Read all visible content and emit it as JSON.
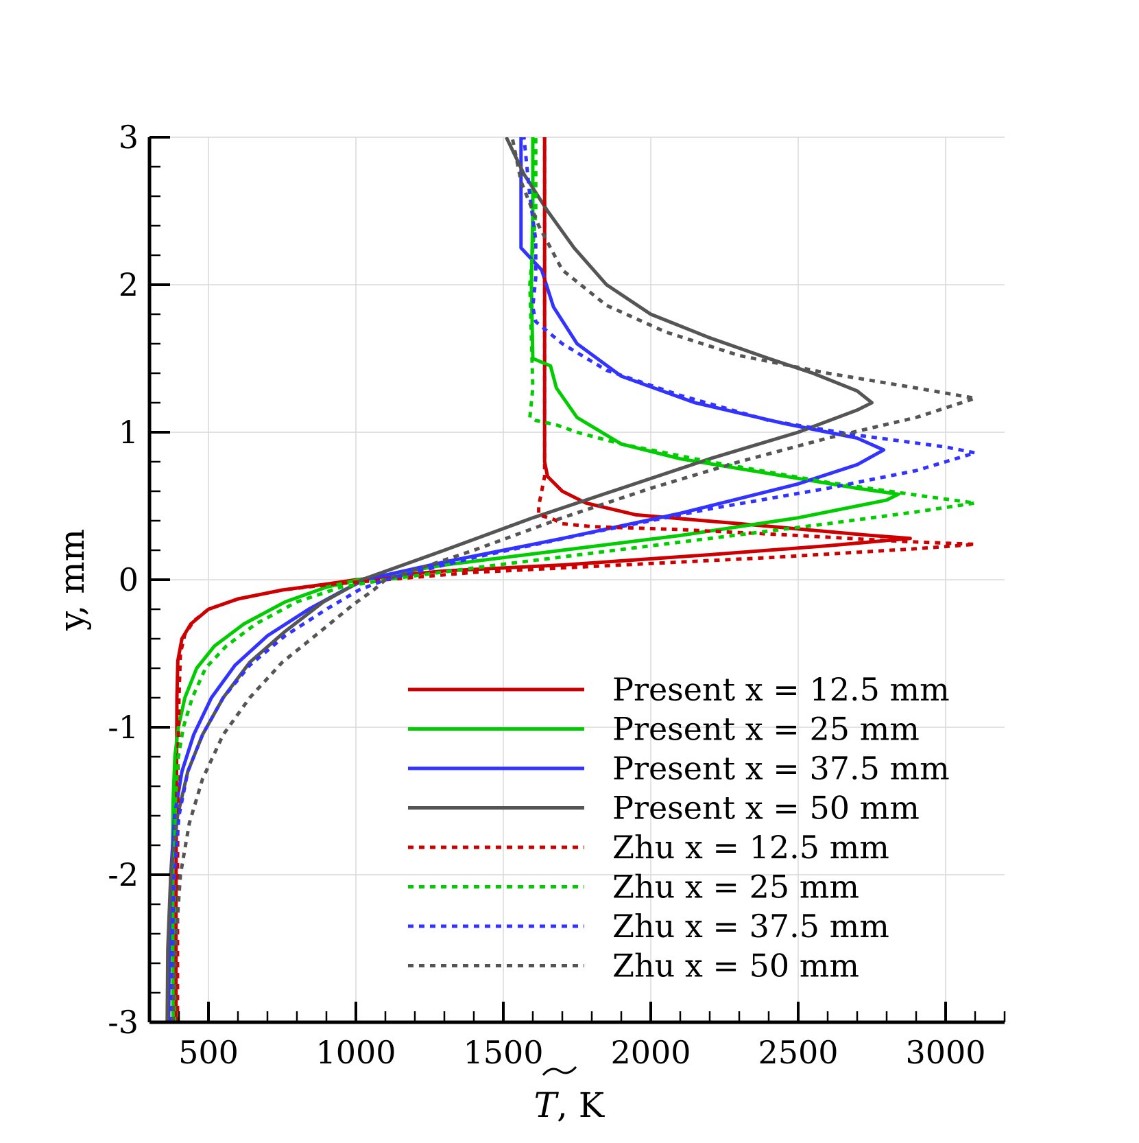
{
  "chart_data": {
    "type": "line",
    "title": "",
    "xlabel": "T, K",
    "xlabel_symbol": "T",
    "xlabel_unit": ", K",
    "ylabel": "y, mm",
    "xlim": [
      300,
      3200
    ],
    "ylim": [
      -3,
      3
    ],
    "grid": true,
    "legend_position": "bottom-right",
    "x_ticks": [
      500,
      1000,
      1500,
      2000,
      2500,
      3000
    ],
    "x_tick_labels": [
      "500",
      "1000",
      "1500",
      "2000",
      "2500",
      "3000"
    ],
    "y_ticks": [
      -3,
      -2,
      -1,
      0,
      1,
      2,
      3
    ],
    "y_tick_labels": [
      "-3",
      "-2",
      "-1",
      "0",
      "1",
      "2",
      "3"
    ],
    "colors": {
      "red": "#cc0000",
      "green": "#00cc00",
      "blue": "#3333ff",
      "gray": "#555555"
    },
    "series": [
      {
        "name": "Present x = 12.5 mm",
        "color": "#cc0000",
        "style": "solid",
        "points": [
          [
            390,
            -3
          ],
          [
            390,
            -2
          ],
          [
            392,
            -1.2
          ],
          [
            393,
            -0.8
          ],
          [
            396,
            -0.55
          ],
          [
            410,
            -0.4
          ],
          [
            440,
            -0.3
          ],
          [
            500,
            -0.2
          ],
          [
            600,
            -0.13
          ],
          [
            750,
            -0.07
          ],
          [
            900,
            -0.03
          ],
          [
            1000,
            0
          ],
          [
            1300,
            0.06
          ],
          [
            1700,
            0.1
          ],
          [
            2200,
            0.17
          ],
          [
            2600,
            0.23
          ],
          [
            2880,
            0.28
          ],
          [
            2750,
            0.3
          ],
          [
            2300,
            0.38
          ],
          [
            1950,
            0.44
          ],
          [
            1780,
            0.52
          ],
          [
            1700,
            0.6
          ],
          [
            1650,
            0.7
          ],
          [
            1640,
            0.8
          ],
          [
            1640,
            1.5
          ],
          [
            1640,
            2.5
          ],
          [
            1640,
            3
          ]
        ]
      },
      {
        "name": "Present x = 25 mm",
        "color": "#00cc00",
        "style": "solid",
        "points": [
          [
            380,
            -3
          ],
          [
            378,
            -2
          ],
          [
            380,
            -1.5
          ],
          [
            386,
            -1.2
          ],
          [
            398,
            -1.0
          ],
          [
            420,
            -0.8
          ],
          [
            460,
            -0.6
          ],
          [
            520,
            -0.45
          ],
          [
            620,
            -0.3
          ],
          [
            760,
            -0.15
          ],
          [
            900,
            -0.05
          ],
          [
            1010,
            0
          ],
          [
            1300,
            0.1
          ],
          [
            1700,
            0.2
          ],
          [
            2100,
            0.3
          ],
          [
            2500,
            0.42
          ],
          [
            2800,
            0.54
          ],
          [
            2840,
            0.58
          ],
          [
            2700,
            0.62
          ],
          [
            2400,
            0.72
          ],
          [
            2100,
            0.82
          ],
          [
            1900,
            0.92
          ],
          [
            1750,
            1.1
          ],
          [
            1680,
            1.3
          ],
          [
            1660,
            1.45
          ],
          [
            1600,
            1.5
          ],
          [
            1595,
            2.0
          ],
          [
            1600,
            2.5
          ],
          [
            1600,
            3
          ]
        ]
      },
      {
        "name": "Present x = 37.5 mm",
        "color": "#3333ff",
        "style": "solid",
        "points": [
          [
            365,
            -3
          ],
          [
            367,
            -2.5
          ],
          [
            372,
            -2
          ],
          [
            385,
            -1.6
          ],
          [
            410,
            -1.3
          ],
          [
            450,
            -1.05
          ],
          [
            510,
            -0.8
          ],
          [
            590,
            -0.58
          ],
          [
            700,
            -0.38
          ],
          [
            840,
            -0.2
          ],
          [
            960,
            -0.07
          ],
          [
            1030,
            0
          ],
          [
            1300,
            0.12
          ],
          [
            1700,
            0.28
          ],
          [
            2100,
            0.45
          ],
          [
            2500,
            0.65
          ],
          [
            2700,
            0.78
          ],
          [
            2790,
            0.88
          ],
          [
            2700,
            0.96
          ],
          [
            2450,
            1.06
          ],
          [
            2150,
            1.2
          ],
          [
            1900,
            1.38
          ],
          [
            1750,
            1.6
          ],
          [
            1670,
            1.85
          ],
          [
            1630,
            2.1
          ],
          [
            1560,
            2.25
          ],
          [
            1560,
            2.6
          ],
          [
            1560,
            3
          ]
        ]
      },
      {
        "name": "Present x = 50 mm",
        "color": "#555555",
        "style": "solid",
        "points": [
          [
            360,
            -3
          ],
          [
            362,
            -2.5
          ],
          [
            372,
            -2
          ],
          [
            395,
            -1.6
          ],
          [
            430,
            -1.3
          ],
          [
            480,
            -1.05
          ],
          [
            550,
            -0.8
          ],
          [
            640,
            -0.56
          ],
          [
            760,
            -0.35
          ],
          [
            890,
            -0.15
          ],
          [
            980,
            -0.05
          ],
          [
            1020,
            0
          ],
          [
            1300,
            0.2
          ],
          [
            1600,
            0.42
          ],
          [
            1900,
            0.62
          ],
          [
            2200,
            0.82
          ],
          [
            2500,
            1.0
          ],
          [
            2700,
            1.15
          ],
          [
            2750,
            1.2
          ],
          [
            2700,
            1.28
          ],
          [
            2550,
            1.4
          ],
          [
            2400,
            1.5
          ],
          [
            2200,
            1.64
          ],
          [
            2000,
            1.8
          ],
          [
            1850,
            2.0
          ],
          [
            1740,
            2.25
          ],
          [
            1650,
            2.5
          ],
          [
            1570,
            2.75
          ],
          [
            1510,
            3
          ]
        ]
      },
      {
        "name": "Zhu x = 12.5 mm",
        "color": "#cc0000",
        "style": "dotted",
        "points": [
          [
            395,
            -3
          ],
          [
            395,
            -2
          ],
          [
            397,
            -1.2
          ],
          [
            400,
            -0.8
          ],
          [
            405,
            -0.5
          ],
          [
            420,
            -0.37
          ],
          [
            450,
            -0.28
          ],
          [
            500,
            -0.2
          ],
          [
            600,
            -0.13
          ],
          [
            750,
            -0.07
          ],
          [
            920,
            -0.03
          ],
          [
            1100,
            0
          ],
          [
            1400,
            0.05
          ],
          [
            1900,
            0.1
          ],
          [
            2400,
            0.15
          ],
          [
            2900,
            0.21
          ],
          [
            3100,
            0.24
          ],
          [
            2850,
            0.26
          ],
          [
            2500,
            0.3
          ],
          [
            2100,
            0.34
          ],
          [
            1800,
            0.36
          ],
          [
            1700,
            0.38
          ],
          [
            1670,
            0.41
          ],
          [
            1620,
            0.44
          ],
          [
            1620,
            0.5
          ],
          [
            1640,
            0.7
          ],
          [
            1640,
            1.5
          ],
          [
            1640,
            2.5
          ],
          [
            1640,
            3
          ]
        ]
      },
      {
        "name": "Zhu x = 25 mm",
        "color": "#00cc00",
        "style": "dotted",
        "points": [
          [
            385,
            -3
          ],
          [
            384,
            -2
          ],
          [
            388,
            -1.5
          ],
          [
            398,
            -1.2
          ],
          [
            415,
            -1.0
          ],
          [
            445,
            -0.8
          ],
          [
            490,
            -0.6
          ],
          [
            560,
            -0.45
          ],
          [
            660,
            -0.3
          ],
          [
            800,
            -0.15
          ],
          [
            950,
            -0.05
          ],
          [
            1100,
            0
          ],
          [
            1400,
            0.08
          ],
          [
            1800,
            0.18
          ],
          [
            2200,
            0.28
          ],
          [
            2600,
            0.38
          ],
          [
            2900,
            0.46
          ],
          [
            3100,
            0.52
          ],
          [
            2950,
            0.56
          ],
          [
            2600,
            0.66
          ],
          [
            2200,
            0.8
          ],
          [
            1900,
            0.92
          ],
          [
            1750,
            1.0
          ],
          [
            1680,
            1.05
          ],
          [
            1610,
            1.08
          ],
          [
            1590,
            1.1
          ],
          [
            1600,
            1.3
          ],
          [
            1590,
            2.0
          ],
          [
            1610,
            2.5
          ],
          [
            1610,
            3
          ]
        ]
      },
      {
        "name": "Zhu x = 37.5 mm",
        "color": "#3333ff",
        "style": "dotted",
        "points": [
          [
            375,
            -3
          ],
          [
            377,
            -2.5
          ],
          [
            384,
            -2
          ],
          [
            400,
            -1.6
          ],
          [
            430,
            -1.3
          ],
          [
            480,
            -1.05
          ],
          [
            550,
            -0.8
          ],
          [
            640,
            -0.58
          ],
          [
            760,
            -0.38
          ],
          [
            900,
            -0.2
          ],
          [
            1010,
            -0.07
          ],
          [
            1100,
            0
          ],
          [
            1400,
            0.15
          ],
          [
            1800,
            0.32
          ],
          [
            2200,
            0.48
          ],
          [
            2600,
            0.62
          ],
          [
            2900,
            0.74
          ],
          [
            3100,
            0.86
          ],
          [
            3000,
            0.9
          ],
          [
            2700,
            0.98
          ],
          [
            2400,
            1.08
          ],
          [
            2100,
            1.25
          ],
          [
            1850,
            1.42
          ],
          [
            1700,
            1.6
          ],
          [
            1610,
            1.75
          ],
          [
            1600,
            1.85
          ],
          [
            1610,
            2.05
          ],
          [
            1610,
            2.3
          ],
          [
            1590,
            2.6
          ],
          [
            1570,
            3
          ]
        ]
      },
      {
        "name": "Zhu x = 50 mm",
        "color": "#555555",
        "style": "dotted",
        "points": [
          [
            380,
            -3
          ],
          [
            388,
            -2.5
          ],
          [
            405,
            -2
          ],
          [
            435,
            -1.65
          ],
          [
            480,
            -1.35
          ],
          [
            550,
            -1.05
          ],
          [
            640,
            -0.8
          ],
          [
            750,
            -0.56
          ],
          [
            880,
            -0.35
          ],
          [
            990,
            -0.17
          ],
          [
            1060,
            -0.07
          ],
          [
            1100,
            0
          ],
          [
            1400,
            0.2
          ],
          [
            1700,
            0.42
          ],
          [
            2000,
            0.62
          ],
          [
            2300,
            0.8
          ],
          [
            2600,
            0.96
          ],
          [
            2900,
            1.1
          ],
          [
            3100,
            1.23
          ],
          [
            2900,
            1.3
          ],
          [
            2600,
            1.4
          ],
          [
            2300,
            1.52
          ],
          [
            2050,
            1.68
          ],
          [
            1850,
            1.86
          ],
          [
            1700,
            2.1
          ],
          [
            1620,
            2.4
          ],
          [
            1560,
            2.7
          ],
          [
            1530,
            3
          ]
        ]
      }
    ]
  }
}
